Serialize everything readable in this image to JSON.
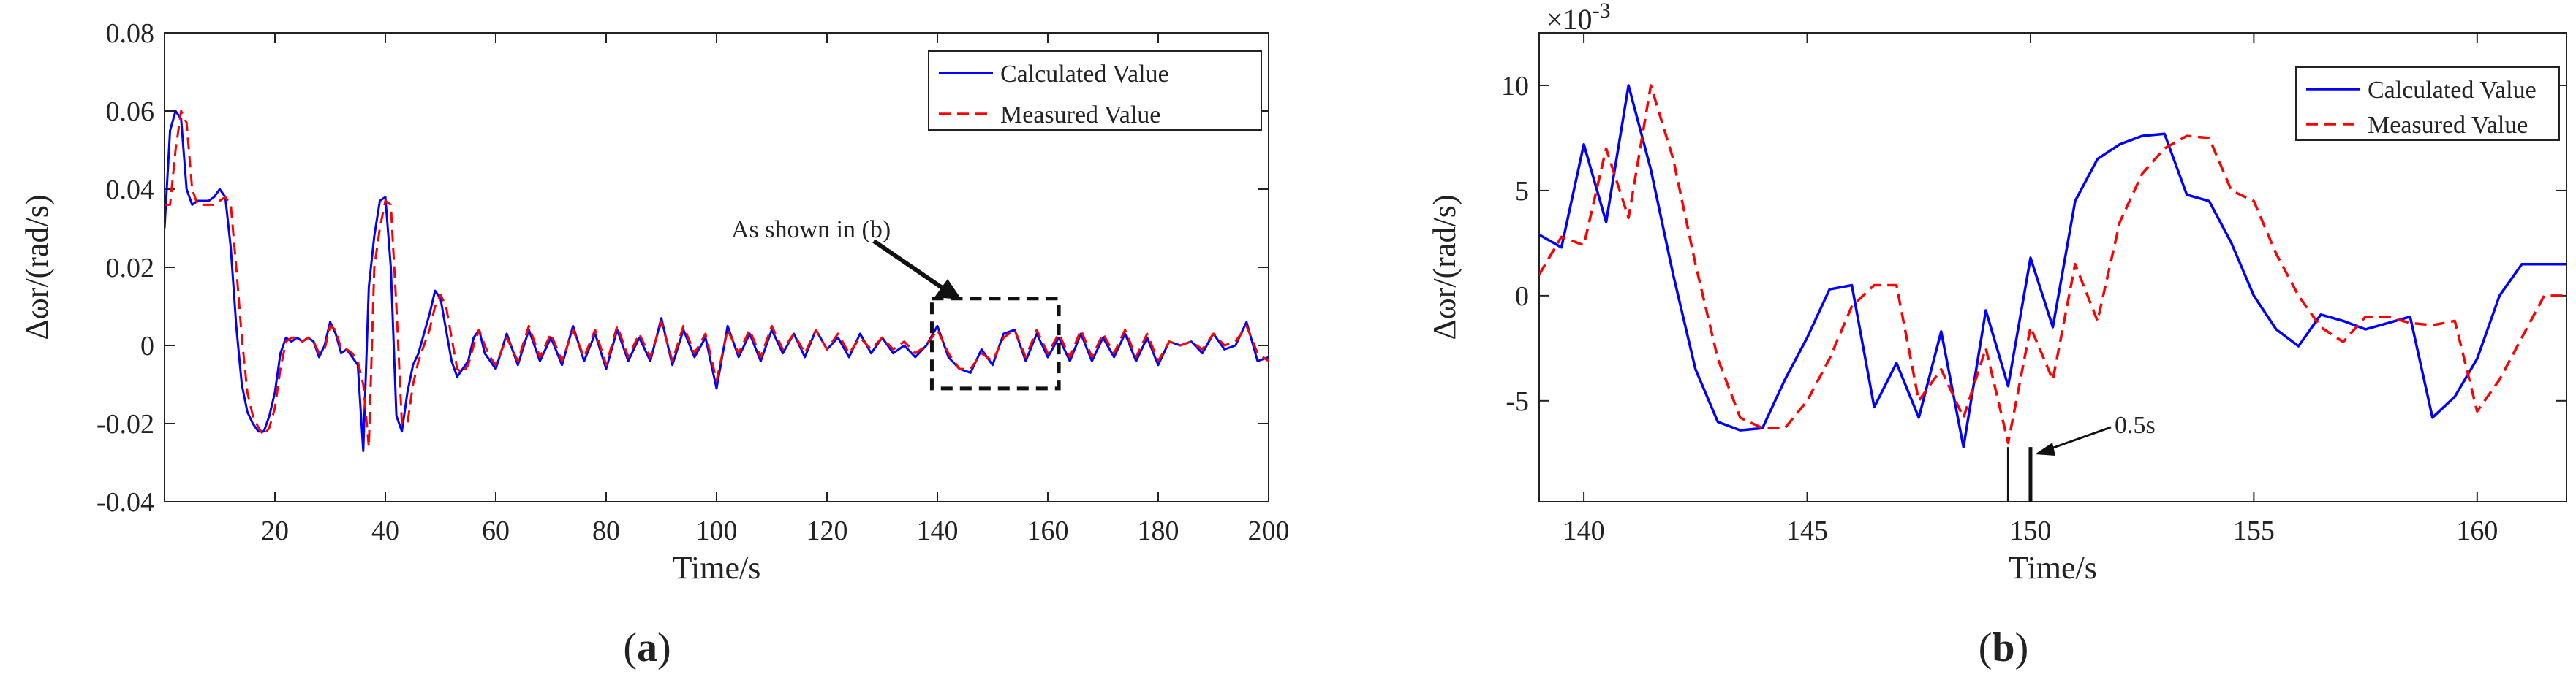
{
  "captions": {
    "a": "a",
    "b": "b"
  },
  "chart_data": [
    {
      "type": "line",
      "panel": "a",
      "xlabel": "Time/s",
      "ylabel": "Δωr/(rad/s)",
      "xlim": [
        0,
        200
      ],
      "ylim": [
        -0.04,
        0.08
      ],
      "xticks": [
        20,
        40,
        60,
        80,
        100,
        120,
        140,
        160,
        180,
        200
      ],
      "xtick_labels": [
        "20",
        "40",
        "60",
        "80",
        "100",
        "120",
        "140",
        "160",
        "180",
        "200"
      ],
      "yticks": [
        -0.04,
        -0.02,
        0,
        0.02,
        0.04,
        0.06,
        0.08
      ],
      "ytick_labels": [
        "-0.04",
        "-0.02",
        "0",
        "0.02",
        "0.04",
        "0.06",
        "0.08"
      ],
      "legend_position": "top-right",
      "annotation": "As shown in (b)",
      "zoom_box": {
        "x": [
          139,
          162
        ],
        "y": [
          -0.011,
          0.012
        ]
      },
      "series": [
        {
          "name": "Calculated Value",
          "color": "#0000ff",
          "style": "solid",
          "x": [
            0,
            1,
            2,
            3,
            4,
            5,
            6,
            7,
            8,
            9,
            10,
            11,
            12,
            13,
            14,
            15,
            16,
            17,
            18,
            19,
            20,
            21,
            22,
            23,
            24,
            25,
            26,
            27,
            28,
            29,
            30,
            31,
            32,
            33,
            34,
            35,
            36,
            37,
            38,
            39,
            40,
            41,
            42,
            43,
            44,
            45,
            46,
            47,
            48,
            49,
            50,
            51,
            52,
            53,
            54,
            55,
            56,
            57,
            58,
            59,
            60,
            62,
            64,
            66,
            68,
            70,
            72,
            74,
            76,
            78,
            80,
            82,
            84,
            86,
            88,
            90,
            92,
            94,
            96,
            98,
            100,
            102,
            104,
            106,
            108,
            110,
            112,
            114,
            116,
            118,
            120,
            122,
            124,
            126,
            128,
            130,
            132,
            134,
            136,
            138,
            140,
            142,
            144,
            146,
            148,
            150,
            152,
            154,
            156,
            158,
            160,
            162,
            164,
            166,
            168,
            170,
            172,
            174,
            176,
            178,
            180,
            182,
            184,
            186,
            188,
            190,
            192,
            194,
            196,
            198,
            200
          ],
          "y": [
            0.03,
            0.055,
            0.06,
            0.058,
            0.04,
            0.036,
            0.037,
            0.037,
            0.037,
            0.038,
            0.04,
            0.038,
            0.025,
            0.005,
            -0.01,
            -0.017,
            -0.02,
            -0.022,
            -0.022,
            -0.018,
            -0.012,
            -0.002,
            0.002,
            0.001,
            0.002,
            0.001,
            0.002,
            0.001,
            -0.003,
            0.0,
            0.006,
            0.003,
            -0.002,
            -0.001,
            -0.003,
            -0.005,
            -0.027,
            0.015,
            0.028,
            0.037,
            0.038,
            0.02,
            -0.018,
            -0.022,
            -0.012,
            -0.005,
            -0.002,
            0.003,
            0.008,
            0.014,
            0.012,
            0.004,
            -0.004,
            -0.008,
            -0.006,
            -0.004,
            0.002,
            0.004,
            -0.002,
            -0.004,
            -0.006,
            0.003,
            -0.005,
            0.004,
            -0.004,
            0.002,
            -0.005,
            0.005,
            -0.004,
            0.003,
            -0.006,
            0.004,
            -0.004,
            0.002,
            -0.004,
            0.007,
            -0.005,
            0.004,
            -0.003,
            0.002,
            -0.011,
            0.005,
            -0.003,
            0.003,
            -0.004,
            0.004,
            -0.002,
            0.003,
            -0.003,
            0.004,
            -0.001,
            0.002,
            -0.003,
            0.003,
            -0.002,
            0.002,
            -0.002,
            0.0,
            -0.003,
            0.0,
            0.005,
            -0.003,
            -0.006,
            -0.007,
            -0.001,
            -0.005,
            0.003,
            0.004,
            -0.004,
            0.003,
            -0.003,
            0.002,
            -0.004,
            0.003,
            -0.004,
            0.002,
            -0.003,
            0.003,
            -0.004,
            0.002,
            -0.005,
            0.001,
            0.0,
            0.001,
            -0.002,
            0.003,
            -0.001,
            0.0,
            0.006,
            -0.004,
            -0.003
          ]
        },
        {
          "name": "Measured Value",
          "color": "#ff0000",
          "style": "dashed",
          "x": [
            0,
            1,
            2,
            3,
            4,
            5,
            6,
            7,
            8,
            9,
            10,
            11,
            12,
            13,
            14,
            15,
            16,
            17,
            18,
            19,
            20,
            21,
            22,
            23,
            24,
            25,
            26,
            27,
            28,
            29,
            30,
            31,
            32,
            33,
            34,
            35,
            36,
            37,
            38,
            39,
            40,
            41,
            42,
            43,
            44,
            45,
            46,
            47,
            48,
            49,
            50,
            51,
            52,
            53,
            54,
            55,
            56,
            57,
            58,
            59,
            60,
            62,
            64,
            66,
            68,
            70,
            72,
            74,
            76,
            78,
            80,
            82,
            84,
            86,
            88,
            90,
            92,
            94,
            96,
            98,
            100,
            102,
            104,
            106,
            108,
            110,
            112,
            114,
            116,
            118,
            120,
            122,
            124,
            126,
            128,
            130,
            132,
            134,
            136,
            138,
            140,
            142,
            144,
            146,
            148,
            150,
            152,
            154,
            156,
            158,
            160,
            162,
            164,
            166,
            168,
            170,
            172,
            174,
            176,
            178,
            180,
            182,
            184,
            186,
            188,
            190,
            192,
            194,
            196,
            198,
            200
          ],
          "y": [
            0.036,
            0.036,
            0.05,
            0.06,
            0.057,
            0.04,
            0.036,
            0.036,
            0.036,
            0.036,
            0.037,
            0.038,
            0.036,
            0.02,
            0.002,
            -0.012,
            -0.018,
            -0.021,
            -0.023,
            -0.021,
            -0.016,
            -0.006,
            0.001,
            0.002,
            0.002,
            0.001,
            0.002,
            0.001,
            -0.002,
            -0.001,
            0.005,
            0.004,
            -0.001,
            -0.001,
            -0.002,
            -0.004,
            -0.01,
            -0.026,
            0.02,
            0.03,
            0.037,
            0.036,
            0.01,
            -0.02,
            -0.02,
            -0.01,
            -0.004,
            0.0,
            0.004,
            0.01,
            0.013,
            0.01,
            0.002,
            -0.006,
            -0.007,
            -0.005,
            0.0,
            0.004,
            0.0,
            -0.003,
            -0.005,
            0.002,
            -0.004,
            0.005,
            -0.003,
            0.003,
            -0.004,
            0.004,
            -0.003,
            0.004,
            -0.005,
            0.005,
            -0.003,
            0.003,
            -0.003,
            0.006,
            -0.004,
            0.005,
            -0.002,
            0.003,
            -0.009,
            0.004,
            -0.002,
            0.004,
            -0.003,
            0.005,
            -0.001,
            0.003,
            -0.002,
            0.004,
            -0.001,
            0.003,
            -0.002,
            0.002,
            -0.001,
            0.002,
            -0.001,
            0.001,
            -0.002,
            0.0,
            0.004,
            -0.002,
            -0.006,
            -0.006,
            -0.002,
            -0.004,
            0.002,
            0.004,
            -0.003,
            0.004,
            -0.002,
            0.003,
            -0.003,
            0.004,
            -0.003,
            0.003,
            -0.002,
            0.004,
            -0.003,
            0.003,
            -0.004,
            0.001,
            0.0,
            0.001,
            -0.001,
            0.003,
            0.0,
            0.001,
            0.005,
            -0.002,
            -0.004
          ]
        }
      ]
    },
    {
      "type": "line",
      "panel": "b",
      "xlabel": "Time/s",
      "ylabel": "Δωr/(rad/s)",
      "y_scale_label": "×10",
      "y_scale_exponent": "-3",
      "xlim": [
        139,
        162
      ],
      "ylim": [
        -9.8,
        12.5
      ],
      "xticks": [
        140,
        145,
        150,
        155,
        160
      ],
      "xtick_labels": [
        "140",
        "145",
        "150",
        "155",
        "160"
      ],
      "yticks": [
        -5,
        0,
        5,
        10
      ],
      "ytick_labels": [
        "-5",
        "0",
        "5",
        "10"
      ],
      "legend_position": "top-right",
      "annotation": "0.5s",
      "marker_lines_x": [
        149.5,
        150.0
      ],
      "series": [
        {
          "name": "Calculated Value",
          "color": "#0000ff",
          "style": "solid",
          "x": [
            139,
            139.5,
            140,
            140.5,
            141,
            141.5,
            142,
            142.5,
            143,
            143.5,
            144,
            144.5,
            145,
            145.5,
            146,
            146.5,
            147,
            147.5,
            148,
            148.5,
            149,
            149.5,
            150,
            150.5,
            151,
            151.5,
            152,
            152.5,
            153,
            153.5,
            154,
            154.5,
            155,
            155.5,
            156,
            156.5,
            157,
            157.5,
            158,
            158.5,
            159,
            159.5,
            160,
            160.5,
            161,
            161.5,
            162
          ],
          "y": [
            2.9,
            2.3,
            7.2,
            3.5,
            10.0,
            6.0,
            1.0,
            -3.5,
            -6.0,
            -6.4,
            -6.3,
            -4.0,
            -2.0,
            0.3,
            0.5,
            -5.3,
            -3.2,
            -5.8,
            -1.7,
            -7.2,
            -0.7,
            -4.3,
            1.8,
            -1.5,
            4.5,
            6.5,
            7.2,
            7.6,
            7.7,
            4.8,
            4.5,
            2.5,
            0.0,
            -1.6,
            -2.4,
            -0.9,
            -1.2,
            -1.6,
            -1.3,
            -1.0,
            -5.8,
            -4.8,
            -3.0,
            0.0,
            1.5,
            1.5,
            1.5
          ]
        },
        {
          "name": "Measured Value",
          "color": "#ff0000",
          "style": "dashed",
          "x": [
            139,
            139.5,
            140,
            140.5,
            141,
            141.5,
            142,
            142.5,
            143,
            143.5,
            144,
            144.5,
            145,
            145.5,
            146,
            146.5,
            147,
            147.5,
            148,
            148.5,
            149,
            149.5,
            150,
            150.5,
            151,
            151.5,
            152,
            152.5,
            153,
            153.5,
            154,
            154.5,
            155,
            155.5,
            156,
            156.5,
            157,
            157.5,
            158,
            158.5,
            159,
            159.5,
            160,
            160.5,
            161,
            161.5,
            162
          ],
          "y": [
            1.0,
            2.8,
            2.4,
            7.0,
            3.7,
            10.0,
            6.5,
            1.5,
            -3.0,
            -5.8,
            -6.3,
            -6.3,
            -5.0,
            -3.0,
            -0.5,
            0.5,
            0.5,
            -5.0,
            -3.5,
            -5.8,
            -2.5,
            -7.0,
            -1.5,
            -4.0,
            1.5,
            -1.2,
            3.5,
            5.8,
            7.0,
            7.6,
            7.5,
            5.0,
            4.5,
            2.0,
            0.0,
            -1.5,
            -2.2,
            -1.0,
            -1.0,
            -1.3,
            -1.4,
            -1.2,
            -5.5,
            -4.0,
            -2.0,
            0.0,
            0.0
          ]
        }
      ]
    }
  ]
}
